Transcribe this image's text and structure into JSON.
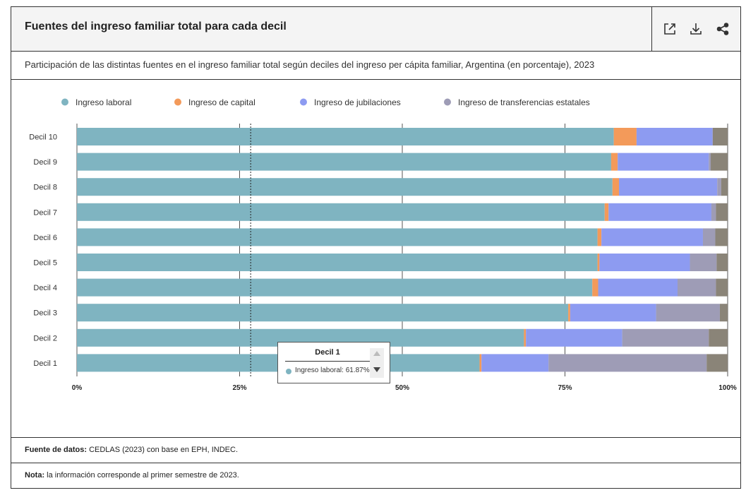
{
  "header": {
    "title": "Fuentes del ingreso familiar total para cada decil",
    "icons": [
      "external-link-icon",
      "download-icon",
      "share-icon"
    ]
  },
  "subtitle": "Participación de las distintas fuentes en el ingreso familiar total según deciles del ingreso per cápita familiar, Argentina (en porcentaje), 2023",
  "footer": {
    "source_label": "Fuente de datos:",
    "source_text": " CEDLAS (2023) con base en EPH, INDEC.",
    "note_label": "Nota:",
    "note_text": " la información corresponde al primer semestre de 2023."
  },
  "tooltip": {
    "title": "Decil 1",
    "text": "Ingreso laboral: 61.87%"
  },
  "chart_data": {
    "type": "bar",
    "orientation": "horizontal",
    "stacked": true,
    "categories": [
      "Decil 10",
      "Decil 9",
      "Decil 8",
      "Decil 7",
      "Decil 6",
      "Decil 5",
      "Decil 4",
      "Decil 3",
      "Decil 2",
      "Decil 1"
    ],
    "series": [
      {
        "name": "Ingreso laboral",
        "color": "#7fb4c1",
        "values": [
          82.5,
          82.1,
          82.3,
          81.1,
          80.0,
          80.0,
          79.2,
          75.5,
          68.7,
          61.87
        ]
      },
      {
        "name": "Ingreso de capital",
        "color": "#f39a5a",
        "values": [
          3.5,
          1.0,
          1.0,
          0.6,
          0.6,
          0.3,
          0.9,
          0.3,
          0.3,
          0.3
        ]
      },
      {
        "name": "Ingreso de jubilaciones",
        "color": "#8d9bf1",
        "values": [
          11.7,
          14.0,
          15.1,
          15.8,
          15.6,
          13.9,
          12.2,
          13.2,
          14.8,
          10.3
        ]
      },
      {
        "name": "Ingreso de transferencias estatales",
        "color": "#9e9cb6",
        "values": [
          0.0,
          0.3,
          0.6,
          0.7,
          1.9,
          4.1,
          5.9,
          9.8,
          13.3,
          24.3
        ]
      },
      {
        "name": "",
        "color": "#8a8478",
        "values": [
          2.3,
          2.6,
          1.0,
          1.8,
          1.9,
          1.7,
          1.8,
          1.2,
          2.9,
          3.23
        ]
      }
    ],
    "xlim": [
      0,
      100
    ],
    "x_ticks": [
      "0%",
      "25%",
      "50%",
      "75%",
      "100%"
    ],
    "legend_position": "top-left",
    "hover_line_x": 26.7
  }
}
